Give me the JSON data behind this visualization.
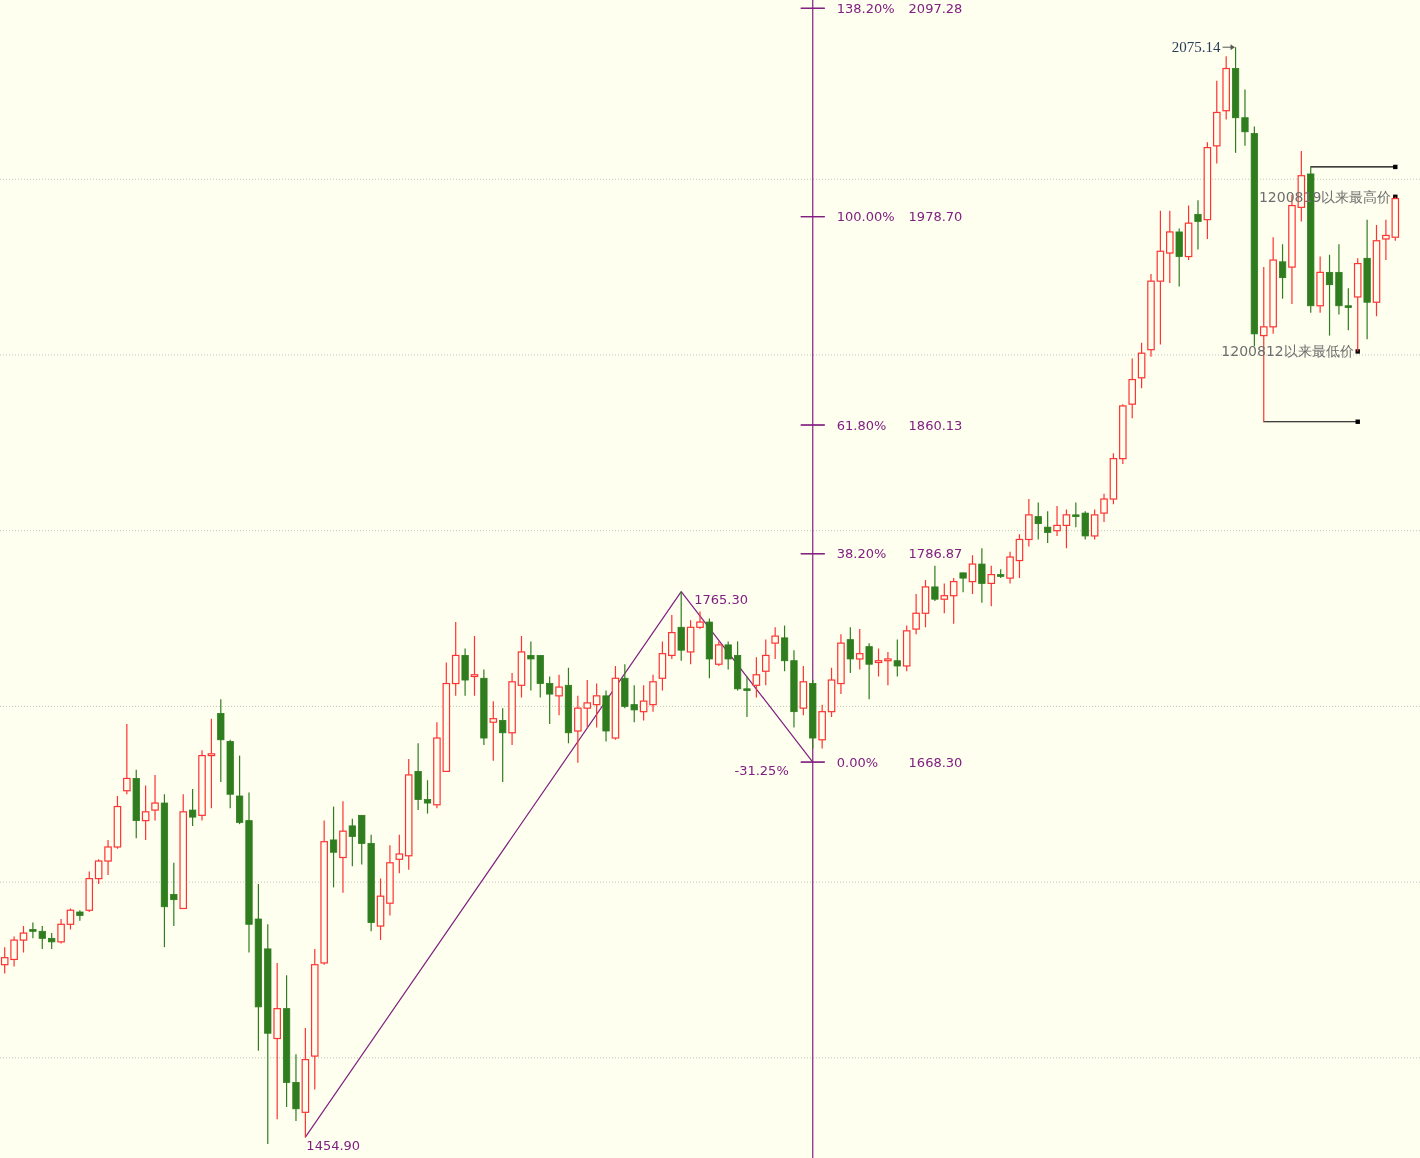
{
  "chart_data": {
    "type": "candlestick",
    "categories": [
      null,
      null,
      null,
      null,
      null,
      null,
      null,
      null,
      null,
      null,
      null,
      null,
      null,
      null,
      null,
      null,
      null,
      null,
      null,
      null,
      null,
      null,
      null,
      null,
      null,
      null,
      null,
      null,
      null,
      null,
      null,
      null,
      null,
      null,
      null,
      null,
      null,
      null,
      null,
      null,
      null,
      null,
      null,
      null,
      null,
      null,
      null,
      null,
      null,
      null,
      null,
      null,
      null,
      null,
      null,
      null,
      null,
      null,
      null,
      null,
      null,
      null,
      null,
      null,
      null,
      null,
      null,
      null,
      null,
      null,
      null,
      null,
      null,
      null,
      null,
      null,
      null,
      null,
      null,
      null,
      null,
      null,
      null,
      null,
      null,
      null,
      null,
      null,
      null,
      null,
      null,
      null,
      null,
      null,
      null,
      null,
      null,
      null,
      null,
      null,
      null,
      null,
      null,
      null,
      null,
      null,
      null,
      null,
      null,
      null,
      null,
      null,
      null,
      null,
      null,
      null,
      null,
      null,
      null,
      null,
      null,
      null,
      null,
      null,
      null,
      null,
      null,
      null,
      null,
      null,
      null,
      null,
      null,
      null,
      null,
      null,
      null,
      null,
      null,
      null,
      null,
      null,
      null,
      null,
      null,
      null,
      null,
      null,
      null
    ],
    "ohlc": [
      [
        1553,
        1563,
        1548,
        1557
      ],
      [
        1556,
        1569,
        1552,
        1567
      ],
      [
        1567,
        1575,
        1560,
        1571
      ],
      [
        1573,
        1577,
        1568,
        1572
      ],
      [
        1572,
        1575,
        1562,
        1568
      ],
      [
        1568,
        1571,
        1562,
        1566
      ],
      [
        1566,
        1579,
        1565,
        1576
      ],
      [
        1576,
        1585,
        1573,
        1584
      ],
      [
        1583,
        1584,
        1578,
        1581
      ],
      [
        1584,
        1606,
        1583,
        1602
      ],
      [
        1602,
        1613,
        1599,
        1612
      ],
      [
        1612,
        1624,
        1604,
        1620
      ],
      [
        1620,
        1649,
        1619,
        1643
      ],
      [
        1652,
        1690,
        1650,
        1659
      ],
      [
        1659,
        1664,
        1625,
        1635
      ],
      [
        1635,
        1655,
        1624,
        1640
      ],
      [
        1641,
        1661,
        1635,
        1645
      ],
      [
        1645,
        1650,
        1563,
        1586
      ],
      [
        1593,
        1611,
        1575,
        1590
      ],
      [
        1585,
        1650,
        1585,
        1640
      ],
      [
        1641,
        1653,
        1632,
        1637
      ],
      [
        1638,
        1675,
        1635,
        1672
      ],
      [
        1672,
        1693,
        1642,
        1673
      ],
      [
        1696,
        1704,
        1657,
        1681
      ],
      [
        1680,
        1681,
        1642,
        1650
      ],
      [
        1649,
        1672,
        1633,
        1634
      ],
      [
        1635,
        1651,
        1560,
        1576
      ],
      [
        1579,
        1599,
        1504,
        1529
      ],
      [
        1562,
        1576,
        1451,
        1514
      ],
      [
        1511,
        1554,
        1465,
        1528
      ],
      [
        1528,
        1547,
        1472,
        1486
      ],
      [
        1486,
        1502,
        1464,
        1471
      ],
      [
        1469,
        1517,
        1454.9,
        1499
      ],
      [
        1501,
        1562,
        1482,
        1553
      ],
      [
        1554,
        1635,
        1553,
        1623
      ],
      [
        1624,
        1643,
        1597,
        1617
      ],
      [
        1614,
        1646,
        1594,
        1629
      ],
      [
        1632,
        1636,
        1609,
        1626
      ],
      [
        1638,
        1638,
        1610,
        1622
      ],
      [
        1622,
        1627,
        1572,
        1577
      ],
      [
        1575,
        1602,
        1567,
        1592
      ],
      [
        1588,
        1621,
        1581,
        1611
      ],
      [
        1613,
        1627,
        1605,
        1616
      ],
      [
        1615,
        1670,
        1607,
        1661
      ],
      [
        1663,
        1679,
        1641,
        1647
      ],
      [
        1647,
        1658,
        1639,
        1645
      ],
      [
        1644,
        1691,
        1642,
        1682
      ],
      [
        1663,
        1725,
        1663,
        1713
      ],
      [
        1713,
        1748,
        1706,
        1729
      ],
      [
        1729,
        1733,
        1706,
        1715
      ],
      [
        1717,
        1740,
        1706,
        1718
      ],
      [
        1716,
        1721,
        1678,
        1682
      ],
      [
        1691,
        1703,
        1669,
        1693
      ],
      [
        1692,
        1699,
        1657,
        1685
      ],
      [
        1685,
        1719,
        1678,
        1714
      ],
      [
        1712,
        1740,
        1705,
        1731
      ],
      [
        1729,
        1737,
        1709,
        1727
      ],
      [
        1729,
        1729,
        1705,
        1713
      ],
      [
        1713,
        1717,
        1690,
        1707
      ],
      [
        1706,
        1718,
        1695,
        1711
      ],
      [
        1712,
        1722,
        1679,
        1685
      ],
      [
        1686,
        1706,
        1668,
        1699
      ],
      [
        1699,
        1715,
        1688,
        1702
      ],
      [
        1701,
        1713,
        1688,
        1706
      ],
      [
        1706,
        1709,
        1680,
        1686
      ],
      [
        1682,
        1723,
        1681,
        1716
      ],
      [
        1716,
        1724,
        1699,
        1700
      ],
      [
        1701,
        1712,
        1691,
        1698
      ],
      [
        1697,
        1712,
        1692,
        1703
      ],
      [
        1701,
        1718,
        1697,
        1714
      ],
      [
        1716,
        1737,
        1709,
        1730
      ],
      [
        1729,
        1752,
        1727,
        1742
      ],
      [
        1745,
        1765.3,
        1726,
        1732
      ],
      [
        1731,
        1749,
        1724,
        1745
      ],
      [
        1745,
        1754,
        1744,
        1748
      ],
      [
        1748,
        1750,
        1716,
        1727
      ],
      [
        1724,
        1737,
        1723,
        1735
      ],
      [
        1735,
        1737,
        1721,
        1727
      ],
      [
        1729,
        1737,
        1709,
        1710
      ],
      [
        1710,
        1717,
        1694,
        1709
      ],
      [
        1712,
        1728,
        1705,
        1718
      ],
      [
        1720,
        1738,
        1712,
        1729
      ],
      [
        1736,
        1745,
        1727,
        1740
      ],
      [
        1739,
        1746,
        1720,
        1726
      ],
      [
        1726,
        1732,
        1688,
        1697
      ],
      [
        1699,
        1723,
        1695,
        1714
      ],
      [
        1713,
        1715,
        1676,
        1682
      ],
      [
        1681,
        1701,
        1676,
        1697
      ],
      [
        1697,
        1722,
        1694,
        1715
      ],
      [
        1713,
        1741,
        1707,
        1736
      ],
      [
        1738,
        1745,
        1719,
        1727
      ],
      [
        1727,
        1744,
        1721,
        1730
      ],
      [
        1734,
        1736,
        1704,
        1724
      ],
      [
        1725,
        1733,
        1717,
        1726
      ],
      [
        1726,
        1731,
        1712,
        1727
      ],
      [
        1726,
        1738,
        1717,
        1723
      ],
      [
        1723,
        1746,
        1720,
        1743
      ],
      [
        1744,
        1764,
        1741,
        1753
      ],
      [
        1753,
        1772,
        1745,
        1768
      ],
      [
        1768,
        1780,
        1760,
        1761
      ],
      [
        1761,
        1770,
        1753,
        1763
      ],
      [
        1763,
        1773,
        1747,
        1771
      ],
      [
        1776,
        1776,
        1765,
        1773
      ],
      [
        1771,
        1786,
        1764,
        1781
      ],
      [
        1781,
        1790,
        1759,
        1770
      ],
      [
        1770,
        1780,
        1757,
        1775
      ],
      [
        1775,
        1778,
        1773,
        1774
      ],
      [
        1773,
        1788,
        1770,
        1785
      ],
      [
        1783,
        1798,
        1773,
        1795
      ],
      [
        1795,
        1818,
        1791,
        1809
      ],
      [
        1808,
        1816,
        1795,
        1804
      ],
      [
        1802,
        1811,
        1793,
        1799
      ],
      [
        1800,
        1814,
        1797,
        1803
      ],
      [
        1803,
        1812,
        1790,
        1809
      ],
      [
        1809,
        1816,
        1802,
        1808
      ],
      [
        1810,
        1811,
        1795,
        1797
      ],
      [
        1797,
        1812,
        1795,
        1809
      ],
      [
        1810,
        1821,
        1805,
        1818
      ],
      [
        1818,
        1844,
        1815,
        1841
      ],
      [
        1841,
        1872,
        1838,
        1871
      ],
      [
        1872,
        1898,
        1864,
        1886
      ],
      [
        1887,
        1907,
        1881,
        1901
      ],
      [
        1903,
        1946,
        1899,
        1942
      ],
      [
        1942,
        1982,
        1906,
        1959
      ],
      [
        1958,
        1982,
        1941,
        1970
      ],
      [
        1970,
        1972,
        1939,
        1956
      ],
      [
        1956,
        1985,
        1954,
        1975
      ],
      [
        1980,
        1988,
        1960,
        1976
      ],
      [
        1977,
        2021,
        1966,
        2018
      ],
      [
        2019,
        2056,
        2009,
        2038
      ],
      [
        2039,
        2070,
        2034,
        2063
      ],
      [
        2063,
        2075.14,
        2015,
        2035
      ],
      [
        2035,
        2051,
        2019,
        2027
      ],
      [
        2026,
        2030,
        1905,
        1912
      ],
      [
        1911,
        1950,
        1862,
        1916
      ],
      [
        1916,
        1967,
        1912,
        1954
      ],
      [
        1953,
        1963,
        1932,
        1944
      ],
      [
        1950,
        1991,
        1929,
        1985
      ],
      [
        1984,
        2016,
        1976,
        2002
      ],
      [
        2003,
        2007,
        1924,
        1928
      ],
      [
        1928,
        1956,
        1924,
        1947
      ],
      [
        1947,
        1957,
        1911,
        1940
      ],
      [
        1947,
        1963,
        1923,
        1928
      ],
      [
        1928,
        1938,
        1914,
        1927
      ],
      [
        1933,
        1955,
        1902,
        1952
      ],
      [
        1955,
        1977,
        1909,
        1930
      ],
      [
        1930,
        1974,
        1922,
        1965
      ],
      [
        1966,
        1977,
        1954,
        1968
      ],
      [
        1967,
        1990,
        1965,
        1989
      ]
    ],
    "colors": [
      "#ff3333",
      "#ff3333",
      "#ff3333",
      "#2f7d1f",
      "#2f7d1f",
      "#2f7d1f",
      "#ff3333",
      "#ff3333",
      "#2f7d1f",
      "#ff3333",
      "#ff3333",
      "#ff3333",
      "#ff3333",
      "#ff3333",
      "#2f7d1f",
      "#ff3333",
      "#ff3333",
      "#2f7d1f",
      "#2f7d1f",
      "#ff3333",
      "#2f7d1f",
      "#ff3333",
      "#ff3333",
      "#2f7d1f",
      "#2f7d1f",
      "#2f7d1f",
      "#2f7d1f",
      "#2f7d1f",
      "#2f7d1f",
      "#ff3333",
      "#2f7d1f",
      "#2f7d1f",
      "#ff3333",
      "#ff3333",
      "#ff3333",
      "#2f7d1f",
      "#ff3333",
      "#2f7d1f",
      "#2f7d1f",
      "#2f7d1f",
      "#ff3333",
      "#ff3333",
      "#ff3333",
      "#ff3333",
      "#2f7d1f",
      "#2f7d1f",
      "#ff3333",
      "#ff3333",
      "#ff3333",
      "#2f7d1f",
      "#ff3333",
      "#2f7d1f",
      "#ff3333",
      "#2f7d1f",
      "#ff3333",
      "#ff3333",
      "#2f7d1f",
      "#2f7d1f",
      "#2f7d1f",
      "#ff3333",
      "#2f7d1f",
      "#ff3333",
      "#ff3333",
      "#ff3333",
      "#2f7d1f",
      "#ff3333",
      "#2f7d1f",
      "#2f7d1f",
      "#ff3333",
      "#ff3333",
      "#ff3333",
      "#ff3333",
      "#2f7d1f",
      "#ff3333",
      "#ff3333",
      "#2f7d1f",
      "#ff3333",
      "#2f7d1f",
      "#2f7d1f",
      "#2f7d1f",
      "#ff3333",
      "#ff3333",
      "#ff3333",
      "#2f7d1f",
      "#2f7d1f",
      "#ff3333",
      "#2f7d1f",
      "#ff3333",
      "#ff3333",
      "#ff3333",
      "#2f7d1f",
      "#ff3333",
      "#2f7d1f",
      "#ff3333",
      "#ff3333",
      "#2f7d1f",
      "#ff3333",
      "#ff3333",
      "#ff3333",
      "#2f7d1f",
      "#ff3333",
      "#ff3333",
      "#2f7d1f",
      "#ff3333",
      "#2f7d1f",
      "#ff3333",
      "#2f7d1f",
      "#ff3333",
      "#ff3333",
      "#ff3333",
      "#2f7d1f",
      "#2f7d1f",
      "#ff3333",
      "#ff3333",
      "#2f7d1f",
      "#2f7d1f",
      "#ff3333",
      "#ff3333",
      "#ff3333",
      "#ff3333",
      "#ff3333",
      "#ff3333",
      "#ff3333",
      "#ff3333",
      "#ff3333",
      "#2f7d1f",
      "#ff3333",
      "#2f7d1f",
      "#ff3333",
      "#ff3333",
      "#ff3333",
      "#2f7d1f",
      "#2f7d1f",
      "#2f7d1f",
      "#ff3333",
      "#ff3333",
      "#2f7d1f",
      "#ff3333",
      "#ff3333",
      "#2f7d1f",
      "#ff3333",
      "#2f7d1f",
      "#2f7d1f",
      "#2f7d1f",
      "#ff3333",
      "#2f7d1f",
      "#ff3333",
      "#ff3333",
      "#ff3333"
    ],
    "series": [
      {
        "type": "line",
        "color": "#802080",
        "values": [
          null,
          null,
          null,
          null,
          null,
          null,
          null,
          null,
          null,
          null,
          null,
          null,
          null,
          null,
          null,
          null,
          null,
          null,
          null,
          null,
          null,
          null,
          null,
          null,
          null,
          null,
          null,
          null,
          null,
          null,
          null,
          null,
          1454.9,
          null,
          null,
          null,
          null,
          null,
          null,
          null,
          null,
          null,
          null,
          null,
          null,
          null,
          null,
          null,
          null,
          null,
          null,
          null,
          null,
          null,
          null,
          null,
          null,
          null,
          null,
          null,
          null,
          null,
          null,
          null,
          null,
          null,
          null,
          null,
          null,
          null,
          null,
          null,
          1765.3,
          null,
          null,
          null,
          null,
          null,
          null,
          null,
          null,
          null,
          null,
          null,
          null,
          null,
          1668.3,
          null,
          null,
          null,
          null,
          null,
          null,
          null,
          null,
          null,
          null,
          null,
          null,
          null,
          null,
          null,
          null,
          null,
          null,
          null,
          null,
          null,
          null,
          null,
          null,
          null,
          null,
          null,
          null,
          null,
          null,
          null,
          null,
          null,
          null,
          null,
          null,
          null,
          null,
          null,
          null,
          null,
          null,
          null,
          null,
          null,
          null,
          null,
          null,
          null,
          null,
          null,
          null,
          null,
          null,
          null,
          null,
          null,
          null,
          null,
          null,
          null,
          null
        ],
        "value_labels": [
          null,
          null,
          null,
          null,
          null,
          null,
          null,
          null,
          null,
          null,
          null,
          null,
          null,
          null,
          null,
          null,
          null,
          null,
          null,
          null,
          null,
          null,
          null,
          null,
          null,
          null,
          null,
          null,
          null,
          null,
          null,
          null,
          "1454.90",
          null,
          null,
          null,
          null,
          null,
          null,
          null,
          null,
          null,
          null,
          null,
          null,
          null,
          null,
          null,
          null,
          null,
          null,
          null,
          null,
          null,
          null,
          null,
          null,
          null,
          null,
          null,
          null,
          null,
          null,
          null,
          null,
          null,
          null,
          null,
          null,
          null,
          null,
          null,
          "1765.30",
          null,
          null,
          null,
          null,
          null,
          null,
          null,
          null,
          null,
          null,
          null,
          null,
          null,
          null,
          null,
          null,
          null,
          null,
          null,
          null,
          null,
          null,
          null,
          null,
          null,
          null,
          null,
          null,
          null,
          null,
          null,
          null,
          null,
          null,
          null,
          null,
          null,
          null,
          null,
          null,
          null,
          null,
          null,
          null,
          null,
          null,
          null,
          null,
          null,
          null,
          null,
          null,
          null,
          null,
          null,
          null,
          null,
          null,
          null,
          null,
          null,
          null,
          null,
          null,
          null,
          null,
          null,
          null,
          null,
          null,
          null,
          null,
          null,
          null,
          null,
          null
        ]
      },
      {
        "type": "line",
        "color": "#000000",
        "marker": "square",
        "values": [
          null,
          null,
          null,
          null,
          null,
          null,
          null,
          null,
          null,
          null,
          null,
          null,
          null,
          null,
          null,
          null,
          null,
          null,
          null,
          null,
          null,
          null,
          null,
          null,
          null,
          null,
          null,
          null,
          null,
          null,
          null,
          null,
          null,
          null,
          null,
          null,
          null,
          null,
          null,
          null,
          null,
          null,
          null,
          null,
          null,
          null,
          null,
          null,
          null,
          null,
          null,
          null,
          null,
          null,
          null,
          null,
          null,
          null,
          null,
          null,
          null,
          null,
          null,
          null,
          null,
          null,
          null,
          null,
          null,
          null,
          null,
          null,
          null,
          null,
          null,
          null,
          null,
          null,
          null,
          null,
          null,
          null,
          null,
          null,
          null,
          null,
          null,
          null,
          null,
          null,
          null,
          null,
          null,
          null,
          null,
          null,
          null,
          null,
          null,
          null,
          null,
          null,
          null,
          null,
          null,
          null,
          null,
          null,
          null,
          null,
          null,
          null,
          null,
          null,
          null,
          null,
          null,
          null,
          null,
          null,
          null,
          null,
          null,
          null,
          null,
          null,
          null,
          null,
          null,
          null,
          null,
          null,
          null,
          null,
          null,
          null,
          null,
          null,
          null,
          2007,
          null,
          null,
          null,
          null,
          null,
          null,
          null,
          null,
          2007
        ]
      },
      {
        "type": "line",
        "color": "#000000",
        "marker": "square",
        "values": [
          null,
          null,
          null,
          null,
          null,
          null,
          null,
          null,
          null,
          null,
          null,
          null,
          null,
          null,
          null,
          null,
          null,
          null,
          null,
          null,
          null,
          null,
          null,
          null,
          null,
          null,
          null,
          null,
          null,
          null,
          null,
          null,
          null,
          null,
          null,
          null,
          null,
          null,
          null,
          null,
          null,
          null,
          null,
          null,
          null,
          null,
          null,
          null,
          null,
          null,
          null,
          null,
          null,
          null,
          null,
          null,
          null,
          null,
          null,
          null,
          null,
          null,
          null,
          null,
          null,
          null,
          null,
          null,
          null,
          null,
          null,
          null,
          null,
          null,
          null,
          null,
          null,
          null,
          null,
          null,
          null,
          null,
          null,
          null,
          null,
          null,
          null,
          null,
          null,
          null,
          null,
          null,
          null,
          null,
          null,
          null,
          null,
          null,
          null,
          null,
          null,
          null,
          null,
          null,
          null,
          null,
          null,
          null,
          null,
          null,
          null,
          null,
          null,
          null,
          null,
          null,
          null,
          null,
          null,
          null,
          null,
          null,
          null,
          null,
          null,
          null,
          null,
          null,
          null,
          null,
          null,
          null,
          null,
          null,
          1862,
          null,
          null,
          null,
          null,
          null,
          null,
          null,
          null,
          null,
          1862,
          null,
          null,
          null,
          null
        ]
      },
      {
        "type": "scatter",
        "color": "#000000",
        "marker": "square",
        "values": [
          null,
          null,
          null,
          null,
          null,
          null,
          null,
          null,
          null,
          null,
          null,
          null,
          null,
          null,
          null,
          null,
          null,
          null,
          null,
          null,
          null,
          null,
          null,
          null,
          null,
          null,
          null,
          null,
          null,
          null,
          null,
          null,
          null,
          null,
          null,
          null,
          null,
          null,
          null,
          null,
          null,
          null,
          null,
          null,
          null,
          null,
          null,
          null,
          null,
          null,
          null,
          null,
          null,
          null,
          null,
          null,
          null,
          null,
          null,
          null,
          null,
          null,
          null,
          null,
          null,
          null,
          null,
          null,
          null,
          null,
          null,
          null,
          null,
          null,
          null,
          null,
          null,
          null,
          null,
          null,
          null,
          null,
          null,
          null,
          null,
          null,
          null,
          null,
          null,
          null,
          null,
          null,
          null,
          null,
          null,
          null,
          null,
          null,
          null,
          null,
          null,
          null,
          null,
          null,
          null,
          null,
          null,
          null,
          null,
          null,
          null,
          null,
          null,
          null,
          null,
          null,
          null,
          null,
          null,
          null,
          null,
          null,
          null,
          null,
          null,
          null,
          null,
          null,
          null,
          null,
          null,
          null,
          null,
          null,
          null,
          null,
          null,
          null,
          null,
          null,
          null,
          null,
          null,
          null,
          1902,
          null,
          null,
          null,
          1990
        ]
      }
    ],
    "ylim": [
      1443,
      2102
    ],
    "yticks": [
      {
        "value": 1668.3,
        "label": "1668.30"
      },
      {
        "value": 1786.87,
        "label": "1786.87"
      },
      {
        "value": 1860.13,
        "label": "1860.13"
      },
      {
        "value": 1978.7,
        "label": "1978.70"
      },
      {
        "value": 2097.28,
        "label": "2097.28"
      }
    ],
    "y2lim": [
      -72.58,
      139.72
    ],
    "y2ticks": [
      {
        "value": 0,
        "label": "0.00%"
      },
      {
        "value": 38.2,
        "label": "38.20%"
      },
      {
        "value": 61.8,
        "label": "61.80%"
      },
      {
        "value": 100,
        "label": "100.00%"
      },
      {
        "value": 138.2,
        "label": "138.20%"
      }
    ],
    "ref_lines": [
      {
        "axis": "y",
        "value": 1500,
        "color": "#c4c4c4",
        "line_style": "dotted"
      },
      {
        "axis": "y",
        "value": 1600,
        "color": "#c4c4c4",
        "line_style": "dotted"
      },
      {
        "axis": "y",
        "value": 1700,
        "color": "#c4c4c4",
        "line_style": "dotted"
      },
      {
        "axis": "y",
        "value": 1800,
        "color": "#c4c4c4",
        "line_style": "dotted"
      },
      {
        "axis": "y",
        "value": 1900,
        "color": "#c4c4c4",
        "line_style": "dotted"
      },
      {
        "axis": "y",
        "value": 2000,
        "color": "#c4c4c4",
        "line_style": "dotted"
      }
    ],
    "annotations": [
      "2075.14",
      "-31.25%",
      "1200812以来最低价",
      "1200819以来最高价"
    ]
  }
}
